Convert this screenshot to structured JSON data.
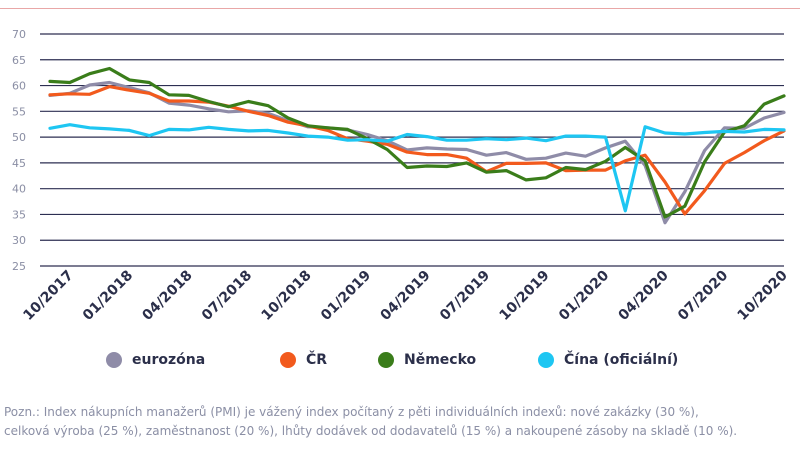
{
  "chart_data": {
    "type": "line",
    "title": "",
    "xlabel": "",
    "ylabel": "",
    "ylim": [
      25,
      70
    ],
    "yticks": [
      25,
      30,
      35,
      40,
      45,
      50,
      55,
      60,
      65,
      70
    ],
    "grid": "horizontal",
    "legend_position": "bottom",
    "x": [
      "09/2017",
      "10/2017",
      "11/2017",
      "12/2017",
      "01/2018",
      "02/2018",
      "03/2018",
      "04/2018",
      "05/2018",
      "06/2018",
      "07/2018",
      "08/2018",
      "09/2018",
      "10/2018",
      "11/2018",
      "12/2018",
      "01/2019",
      "02/2019",
      "03/2019",
      "04/2019",
      "05/2019",
      "06/2019",
      "07/2019",
      "08/2019",
      "09/2019",
      "10/2019",
      "11/2019",
      "12/2019",
      "01/2020",
      "02/2020",
      "03/2020",
      "04/2020",
      "05/2020",
      "06/2020",
      "07/2020",
      "08/2020",
      "09/2020",
      "10/2020"
    ],
    "x_tick_labels": [
      "10/2017",
      "01/2018",
      "04/2018",
      "07/2018",
      "10/2018",
      "01/2019",
      "04/2019",
      "07/2019",
      "10/2019",
      "01/2020",
      "04/2020",
      "07/2020",
      "10/2020"
    ],
    "series": [
      {
        "name": "eurozóna",
        "color": "#8f8ca8",
        "values": [
          58.1,
          58.5,
          60.1,
          60.6,
          59.6,
          58.6,
          56.6,
          56.2,
          55.5,
          54.9,
          55.1,
          54.6,
          53.2,
          52.0,
          51.8,
          51.4,
          50.5,
          49.3,
          47.5,
          47.9,
          47.7,
          47.6,
          46.5,
          47.0,
          45.7,
          45.9,
          46.9,
          46.3,
          47.9,
          49.2,
          44.5,
          33.4,
          39.4,
          47.4,
          51.8,
          51.7,
          53.7,
          54.8
        ]
      },
      {
        "name": "ČR",
        "color": "#f25a1d",
        "values": [
          58.2,
          58.4,
          58.3,
          59.8,
          59.1,
          58.5,
          57.0,
          57.0,
          56.8,
          56.0,
          55.0,
          54.2,
          52.9,
          52.2,
          51.3,
          49.7,
          49.2,
          48.6,
          47.1,
          46.6,
          46.6,
          45.9,
          43.3,
          44.9,
          44.9,
          45.0,
          43.5,
          43.6,
          43.6,
          45.4,
          46.5,
          41.3,
          35.1,
          39.6,
          44.9,
          47.0,
          49.3,
          51.2
        ]
      },
      {
        "name": "Německo",
        "color": "#3a7d1a",
        "values": [
          60.8,
          60.6,
          62.3,
          63.3,
          61.1,
          60.6,
          58.2,
          58.1,
          56.9,
          55.9,
          56.9,
          56.1,
          53.7,
          52.2,
          51.8,
          51.5,
          49.7,
          47.6,
          44.1,
          44.4,
          44.3,
          45.0,
          43.2,
          43.5,
          41.7,
          42.1,
          44.1,
          43.7,
          45.3,
          48.0,
          45.4,
          34.5,
          36.6,
          45.2,
          51.0,
          52.2,
          56.4,
          58.0
        ]
      },
      {
        "name": "Čína (oficiální)",
        "color": "#1ec6f2",
        "values": [
          51.7,
          52.4,
          51.8,
          51.6,
          51.3,
          50.3,
          51.5,
          51.4,
          51.9,
          51.5,
          51.2,
          51.3,
          50.8,
          50.2,
          50.0,
          49.4,
          49.5,
          49.2,
          50.5,
          50.1,
          49.4,
          49.4,
          49.7,
          49.5,
          49.8,
          49.3,
          50.2,
          50.2,
          50.0,
          35.7,
          52.0,
          50.8,
          50.6,
          50.9,
          51.1,
          51.0,
          51.5,
          51.4
        ]
      }
    ]
  },
  "legend": {
    "items": [
      {
        "label": "eurozóna",
        "color": "#8f8ca8"
      },
      {
        "label": "ČR",
        "color": "#f25a1d"
      },
      {
        "label": "Německo",
        "color": "#3a7d1a"
      },
      {
        "label": "Čína (oficiální)",
        "color": "#1ec6f2"
      }
    ]
  },
  "note": {
    "line1": "Pozn.: Index nákupních manažerů (PMI) je vážený index počítaný z pěti individuálních indexů: nové zakázky (30 %),",
    "line2": "celková výroba (25 %), zaměstnanost (20 %), lhůty dodávek od dodavatelů (15 %) a nakoupené zásoby na skladě (10 %)."
  }
}
